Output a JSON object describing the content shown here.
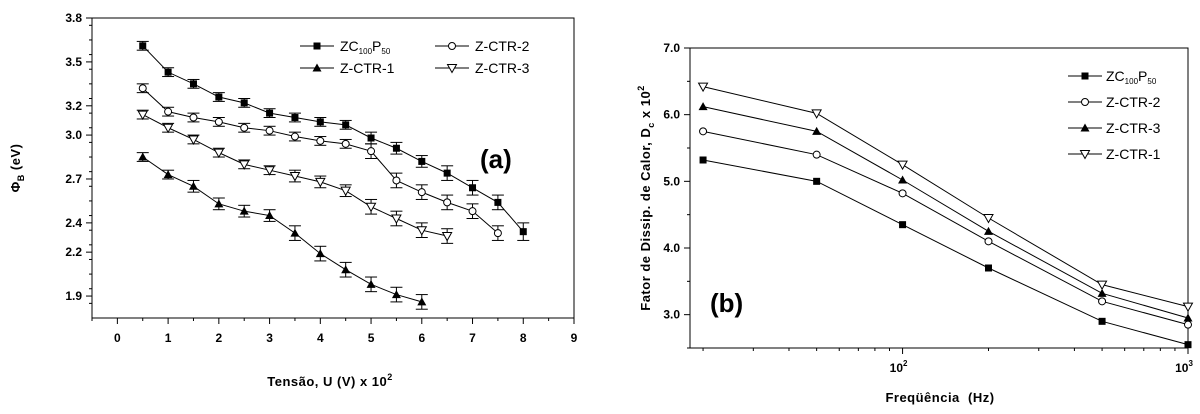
{
  "chart_data": [
    {
      "type": "line",
      "panel_label": "(a)",
      "xlabel": "Tensão, U (V) x 10",
      "xlabel_sup": "2",
      "ylabel": "Φ",
      "ylabel_sub": "B",
      "ylabel_unit": " (eV)",
      "xlim": [
        -0.5,
        9
      ],
      "ylim": [
        1.75,
        3.8
      ],
      "x_ticks": [
        "0",
        "1",
        "2",
        "3",
        "4",
        "5",
        "6",
        "7",
        "8",
        "9"
      ],
      "y_ticks": [
        "1.9",
        "2.2",
        "2.4",
        "2.7",
        "3.0",
        "3.2",
        "3.5",
        "3.8"
      ],
      "legend_position": "top-right",
      "series": [
        {
          "name": "ZC100P50",
          "legend_parts": [
            "ZC",
            "100",
            "P",
            "50"
          ],
          "marker": "square-filled",
          "x": [
            0.5,
            1,
            1.5,
            2,
            2.5,
            3,
            3.5,
            4,
            4.5,
            5,
            5.5,
            6,
            6.5,
            7,
            7.5,
            8
          ],
          "y": [
            3.61,
            3.43,
            3.35,
            3.26,
            3.22,
            3.15,
            3.12,
            3.09,
            3.07,
            2.98,
            2.91,
            2.82,
            2.74,
            2.64,
            2.54,
            2.34
          ],
          "err": [
            0.03,
            0.03,
            0.03,
            0.03,
            0.03,
            0.03,
            0.03,
            0.03,
            0.03,
            0.04,
            0.04,
            0.04,
            0.05,
            0.05,
            0.05,
            0.06
          ]
        },
        {
          "name": "Z-CTR-2",
          "legend_parts": [
            "Z-CTR-2"
          ],
          "marker": "circle-open",
          "x": [
            0.5,
            1,
            1.5,
            2,
            2.5,
            3,
            3.5,
            4,
            4.5,
            5,
            5.5,
            6,
            6.5,
            7,
            7.5
          ],
          "y": [
            3.32,
            3.16,
            3.12,
            3.09,
            3.05,
            3.03,
            2.99,
            2.96,
            2.94,
            2.89,
            2.69,
            2.61,
            2.54,
            2.48,
            2.33
          ],
          "err": [
            0.03,
            0.03,
            0.03,
            0.03,
            0.03,
            0.03,
            0.03,
            0.03,
            0.03,
            0.05,
            0.05,
            0.05,
            0.05,
            0.05,
            0.05
          ]
        },
        {
          "name": "Z-CTR-1",
          "legend_parts": [
            "Z-CTR-1"
          ],
          "marker": "triangle-up-filled",
          "x": [
            0.5,
            1,
            1.5,
            2,
            2.5,
            3,
            3.5,
            4,
            4.5,
            5,
            5.5,
            6
          ],
          "y": [
            2.85,
            2.73,
            2.65,
            2.53,
            2.48,
            2.45,
            2.33,
            2.19,
            2.08,
            1.98,
            1.91,
            1.86
          ],
          "err": [
            0.03,
            0.03,
            0.04,
            0.04,
            0.04,
            0.04,
            0.05,
            0.05,
            0.05,
            0.05,
            0.05,
            0.05
          ]
        },
        {
          "name": "Z-CTR-3",
          "legend_parts": [
            "Z-CTR-3"
          ],
          "marker": "triangle-down-open",
          "x": [
            0.5,
            1,
            1.5,
            2,
            2.5,
            3,
            3.5,
            4,
            4.5,
            5,
            5.5,
            6,
            6.5
          ],
          "y": [
            3.14,
            3.05,
            2.97,
            2.88,
            2.8,
            2.76,
            2.72,
            2.68,
            2.62,
            2.51,
            2.43,
            2.35,
            2.31
          ],
          "err": [
            0.03,
            0.03,
            0.03,
            0.03,
            0.03,
            0.03,
            0.04,
            0.04,
            0.04,
            0.05,
            0.05,
            0.05,
            0.05
          ]
        }
      ]
    },
    {
      "type": "line",
      "panel_label": "(b)",
      "xlabel": "Freqüência  (Hz)",
      "ylabel": "Fator de Dissip. de Calor, D",
      "ylabel_sub": "c",
      "ylabel_tail": " x 10",
      "ylabel_sup": "2",
      "xscale": "log",
      "xlim": [
        18,
        1000
      ],
      "ylim": [
        2.5,
        7.0
      ],
      "x_ticks": [
        {
          "value": 100,
          "base": "10",
          "exp": "2"
        },
        {
          "value": 1000,
          "base": "10",
          "exp": "3"
        }
      ],
      "y_ticks": [
        "3.0",
        "4.0",
        "5.0",
        "6.0",
        "7.0"
      ],
      "legend_position": "right",
      "series": [
        {
          "name": "ZC100P50",
          "legend_parts": [
            "ZC",
            "100",
            "P",
            "50"
          ],
          "marker": "square-filled",
          "x": [
            20,
            50,
            100,
            200,
            500,
            1000
          ],
          "y": [
            5.32,
            5.0,
            4.35,
            3.7,
            2.9,
            2.55
          ]
        },
        {
          "name": "Z-CTR-2",
          "legend_parts": [
            "Z-CTR-2"
          ],
          "marker": "circle-open",
          "x": [
            20,
            50,
            100,
            200,
            500,
            1000
          ],
          "y": [
            5.75,
            5.4,
            4.82,
            4.1,
            3.2,
            2.85
          ]
        },
        {
          "name": "Z-CTR-3",
          "legend_parts": [
            "Z-CTR-3"
          ],
          "marker": "triangle-up-filled",
          "x": [
            20,
            50,
            100,
            200,
            500,
            1000
          ],
          "y": [
            6.12,
            5.75,
            5.02,
            4.25,
            3.32,
            2.95
          ]
        },
        {
          "name": "Z-CTR-1",
          "legend_parts": [
            "Z-CTR-1"
          ],
          "marker": "triangle-down-open",
          "x": [
            20,
            50,
            100,
            200,
            500,
            1000
          ],
          "y": [
            6.42,
            6.02,
            5.25,
            4.45,
            3.45,
            3.12
          ]
        }
      ]
    }
  ]
}
